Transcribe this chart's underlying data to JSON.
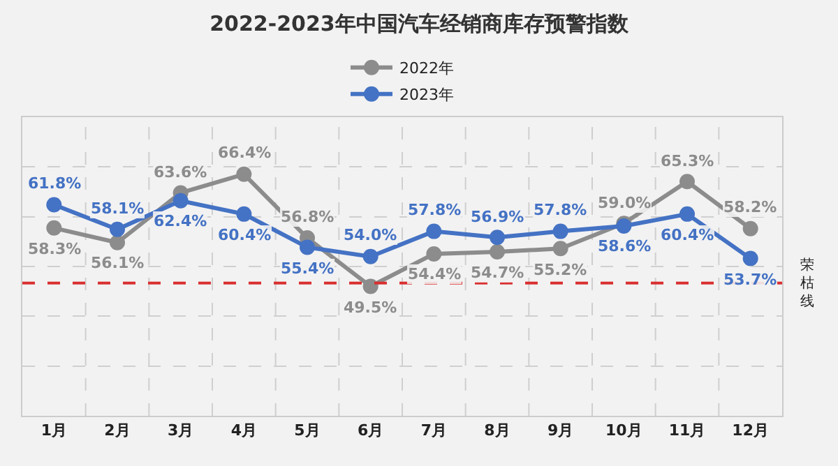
{
  "chart_data": {
    "type": "line",
    "title": "2022-2023年中国汽车经销商库存预警指数",
    "categories": [
      "1月",
      "2月",
      "3月",
      "4月",
      "5月",
      "6月",
      "7月",
      "8月",
      "9月",
      "10月",
      "11月",
      "12月"
    ],
    "series": [
      {
        "name": "2022年",
        "color": "#8c8c8c",
        "values": [
          58.3,
          56.1,
          63.6,
          66.4,
          56.8,
          49.5,
          54.4,
          54.7,
          55.2,
          59.0,
          65.3,
          58.2
        ],
        "value_labels": [
          "58.3%",
          "56.1%",
          "63.6%",
          "66.4%",
          "56.8%",
          "49.5%",
          "54.4%",
          "54.7%",
          "55.2%",
          "59.0%",
          "65.3%",
          "58.2%"
        ]
      },
      {
        "name": "2023年",
        "color": "#4472c4",
        "values": [
          61.8,
          58.1,
          62.4,
          60.4,
          55.4,
          54.0,
          57.8,
          56.9,
          57.8,
          58.6,
          60.4,
          53.7
        ],
        "value_labels": [
          "61.8%",
          "58.1%",
          "62.4%",
          "60.4%",
          "55.4%",
          "54.0%",
          "57.8%",
          "56.9%",
          "57.8%",
          "58.6%",
          "60.4%",
          "53.7%"
        ]
      }
    ],
    "ylim": [
      30,
      75
    ],
    "yticks": [
      {
        "value": 30,
        "label": null
      },
      {
        "value": 37.5,
        "label": null
      },
      {
        "value": 45,
        "label": null
      },
      {
        "value": 52.5,
        "label": null
      },
      {
        "value": 60,
        "label": null
      },
      {
        "value": 67.5,
        "label": null
      },
      {
        "value": 75,
        "label": null
      }
    ],
    "ref_lines": [
      {
        "axis": "y",
        "value": 50,
        "label": "荣枯线",
        "color": "#d93030",
        "line_style": "dashed"
      }
    ],
    "grid": true,
    "legend": "top",
    "marker": "circle",
    "line_style": "solid",
    "tick_labels": "x"
  }
}
